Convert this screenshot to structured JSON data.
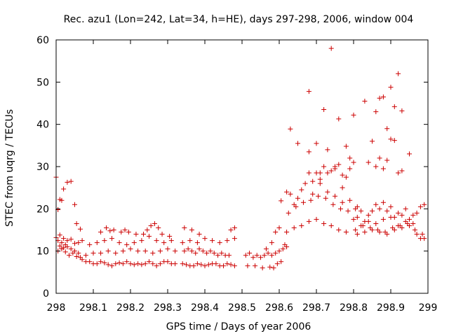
{
  "chart_data": {
    "type": "scatter",
    "title": "Rec. azu1 (Lon=242, Lat=34, h=HE), days 297-298, 2006, window 004",
    "xlabel": "GPS time / Days of year 2006",
    "ylabel": "STEC from uqrg / TECUs",
    "xlim": [
      298,
      299
    ],
    "ylim": [
      0,
      60
    ],
    "xticks": [
      "298",
      "298.1",
      "298.2",
      "298.3",
      "298.4",
      "298.5",
      "298.6",
      "298.7",
      "298.8",
      "298.9",
      "299"
    ],
    "yticks": [
      "0",
      "10",
      "20",
      "30",
      "40",
      "50",
      "60"
    ],
    "grid": false,
    "marker": "+",
    "colors": {
      "points": "#cc0000"
    },
    "series": [
      {
        "x": [
          298.0,
          298.005,
          298.01,
          298.015,
          298.02,
          298.03,
          298.04,
          298.05,
          298.055,
          298.065,
          298.0,
          298.005,
          298.01,
          298.015,
          298.02,
          298.025,
          298.03,
          298.04,
          298.05,
          298.06,
          298.07,
          298.01,
          298.02,
          298.03,
          298.04,
          298.05,
          298.06,
          298.005,
          298.015,
          298.025,
          298.035,
          298.045,
          298.055,
          298.065,
          298.07,
          298.08,
          298.09,
          298.1,
          298.11,
          298.12,
          298.13,
          298.14,
          298.15,
          298.16,
          298.17,
          298.18,
          298.19,
          298.2,
          298.21,
          298.22,
          298.23,
          298.24,
          298.25,
          298.26,
          298.27,
          298.28,
          298.29,
          298.3,
          298.31,
          298.32,
          298.08,
          298.1,
          298.12,
          298.14,
          298.16,
          298.18,
          298.2,
          298.22,
          298.24,
          298.26,
          298.28,
          298.3,
          298.32,
          298.09,
          298.11,
          298.13,
          298.15,
          298.17,
          298.19,
          298.21,
          298.23,
          298.25,
          298.27,
          298.29,
          298.31,
          298.12,
          298.135,
          298.145,
          298.155,
          298.175,
          298.185,
          298.195,
          298.215,
          298.235,
          298.245,
          298.255,
          298.265,
          298.275,
          298.285,
          298.305,
          298.34,
          298.35,
          298.36,
          298.37,
          298.38,
          298.39,
          298.4,
          298.41,
          298.42,
          298.43,
          298.44,
          298.45,
          298.46,
          298.47,
          298.48,
          298.345,
          298.355,
          298.365,
          298.375,
          298.385,
          298.395,
          298.405,
          298.415,
          298.425,
          298.435,
          298.445,
          298.455,
          298.465,
          298.34,
          298.36,
          298.38,
          298.4,
          298.42,
          298.44,
          298.46,
          298.48,
          298.345,
          298.365,
          298.385,
          298.47,
          298.48,
          298.51,
          298.52,
          298.53,
          298.54,
          298.55,
          298.56,
          298.57,
          298.58,
          298.59,
          298.6,
          298.61,
          298.62,
          298.515,
          298.535,
          298.555,
          298.575,
          298.585,
          298.595,
          298.605,
          298.565,
          298.58,
          298.59,
          298.6,
          298.605,
          298.615,
          298.62,
          298.63,
          298.64,
          298.65,
          298.66,
          298.67,
          298.68,
          298.69,
          298.7,
          298.71,
          298.72,
          298.73,
          298.74,
          298.75,
          298.76,
          298.77,
          298.78,
          298.79,
          298.8,
          298.625,
          298.645,
          298.665,
          298.685,
          298.705,
          298.725,
          298.745,
          298.765,
          298.785,
          298.805,
          298.62,
          298.64,
          298.66,
          298.68,
          298.7,
          298.72,
          298.74,
          298.76,
          298.78,
          298.68,
          298.7,
          298.72,
          298.74,
          298.76,
          298.78,
          298.8,
          298.63,
          298.65,
          298.68,
          298.71,
          298.73,
          298.75,
          298.77,
          298.79,
          298.69,
          298.71,
          298.73,
          298.75,
          298.77,
          298.79,
          298.81,
          298.8,
          298.81,
          298.82,
          298.83,
          298.84,
          298.85,
          298.86,
          298.87,
          298.88,
          298.89,
          298.9,
          298.91,
          298.92,
          298.93,
          298.94,
          298.95,
          298.96,
          298.97,
          298.98,
          298.99,
          298.805,
          298.825,
          298.845,
          298.865,
          298.885,
          298.905,
          298.925,
          298.945,
          298.965,
          298.985,
          298.81,
          298.83,
          298.85,
          298.87,
          298.89,
          298.91,
          298.93,
          298.95,
          298.97,
          298.99,
          298.82,
          298.84,
          298.86,
          298.88,
          298.9,
          298.92,
          298.94,
          298.96,
          298.98,
          298.83,
          298.85,
          298.86,
          298.87,
          298.88,
          298.89,
          298.9,
          298.91,
          298.92,
          298.93,
          298.84,
          298.86,
          298.87,
          298.88,
          298.89,
          298.9,
          298.91,
          298.92,
          298.93,
          298.95
        ],
        "y": [
          27.5,
          19.8,
          22.2,
          22.0,
          24.7,
          26.3,
          26.5,
          21.0,
          16.5,
          15.2,
          13.2,
          12.5,
          13.8,
          12.0,
          13.0,
          11.5,
          12.5,
          12.8,
          11.8,
          12.0,
          12.5,
          11.2,
          10.8,
          11.0,
          10.5,
          10.0,
          9.5,
          10.0,
          10.5,
          9.8,
          9.0,
          9.5,
          8.7,
          8.5,
          8.0,
          7.5,
          7.5,
          7.0,
          7.0,
          7.5,
          7.2,
          6.8,
          6.5,
          7.0,
          7.2,
          7.0,
          7.5,
          7.0,
          6.8,
          7.0,
          6.8,
          7.0,
          7.5,
          7.0,
          6.5,
          7.0,
          7.5,
          7.5,
          7.0,
          7.0,
          9.0,
          9.5,
          9.5,
          10.0,
          9.5,
          10.0,
          10.5,
          10.0,
          10.0,
          9.5,
          10.0,
          10.5,
          10.0,
          11.5,
          12.0,
          12.5,
          13.0,
          12.0,
          11.5,
          12.0,
          12.5,
          13.5,
          12.5,
          12.0,
          12.5,
          14.5,
          15.5,
          14.8,
          15.0,
          14.5,
          15.0,
          14.5,
          14.0,
          14.0,
          15.0,
          16.0,
          16.5,
          15.5,
          14.0,
          13.5,
          7.0,
          6.8,
          6.5,
          6.5,
          7.0,
          6.8,
          6.5,
          6.8,
          7.0,
          7.0,
          6.5,
          6.5,
          7.0,
          6.8,
          6.5,
          10.0,
          10.5,
          10.0,
          9.5,
          10.5,
          10.0,
          9.5,
          10.0,
          9.5,
          9.0,
          9.5,
          9.0,
          9.0,
          12.0,
          12.5,
          12.0,
          13.0,
          12.5,
          12.0,
          12.5,
          13.0,
          15.5,
          15.0,
          14.0,
          15.0,
          15.5,
          9.0,
          9.5,
          8.5,
          9.0,
          8.5,
          9.0,
          9.5,
          9.0,
          9.5,
          10.0,
          10.5,
          11.0,
          6.5,
          6.5,
          6.0,
          6.2,
          6.0,
          7.0,
          7.5,
          10.5,
          12.0,
          14.5,
          15.5,
          21.9,
          11.5,
          24.0,
          23.5,
          21.0,
          22.5,
          24.5,
          26.0,
          28.5,
          26.5,
          28.5,
          27.0,
          30.0,
          28.5,
          29.0,
          29.5,
          30.5,
          28.0,
          27.5,
          29.5,
          31.0,
          19.0,
          20.5,
          21.5,
          22.0,
          23.0,
          22.5,
          21.0,
          20.0,
          19.5,
          20.0,
          14.5,
          15.5,
          16.0,
          17.0,
          17.5,
          16.5,
          16.0,
          15.0,
          14.5,
          47.8,
          35.5,
          43.5,
          58.0,
          41.3,
          34.8,
          42.2,
          38.9,
          35.5,
          33.5,
          28.5,
          34.0,
          30.0,
          25.0,
          32.0,
          23.5,
          26.0,
          24.0,
          23.0,
          21.5,
          22.0,
          20.5,
          17.5,
          18.0,
          19.5,
          17.0,
          18.5,
          19.5,
          21.0,
          20.0,
          21.5,
          19.5,
          20.5,
          18.0,
          19.0,
          18.5,
          20.0,
          17.5,
          18.5,
          19.0,
          20.5,
          21.0,
          15.0,
          16.0,
          15.5,
          15.0,
          14.5,
          15.5,
          16.0,
          16.5,
          15.0,
          14.0,
          14.0,
          14.5,
          15.0,
          14.5,
          14.0,
          15.0,
          15.5,
          16.0,
          14.0,
          13.0,
          16.0,
          17.0,
          16.5,
          17.5,
          18.0,
          16.0,
          17.0,
          16.5,
          13.0,
          45.5,
          36.0,
          43.0,
          46.2,
          46.5,
          39.0,
          48.8,
          44.2,
          52.0,
          43.2,
          31.0,
          30.0,
          32.0,
          29.5,
          31.5,
          36.5,
          36.2,
          28.5,
          29.0,
          33.0
        ]
      }
    ]
  }
}
